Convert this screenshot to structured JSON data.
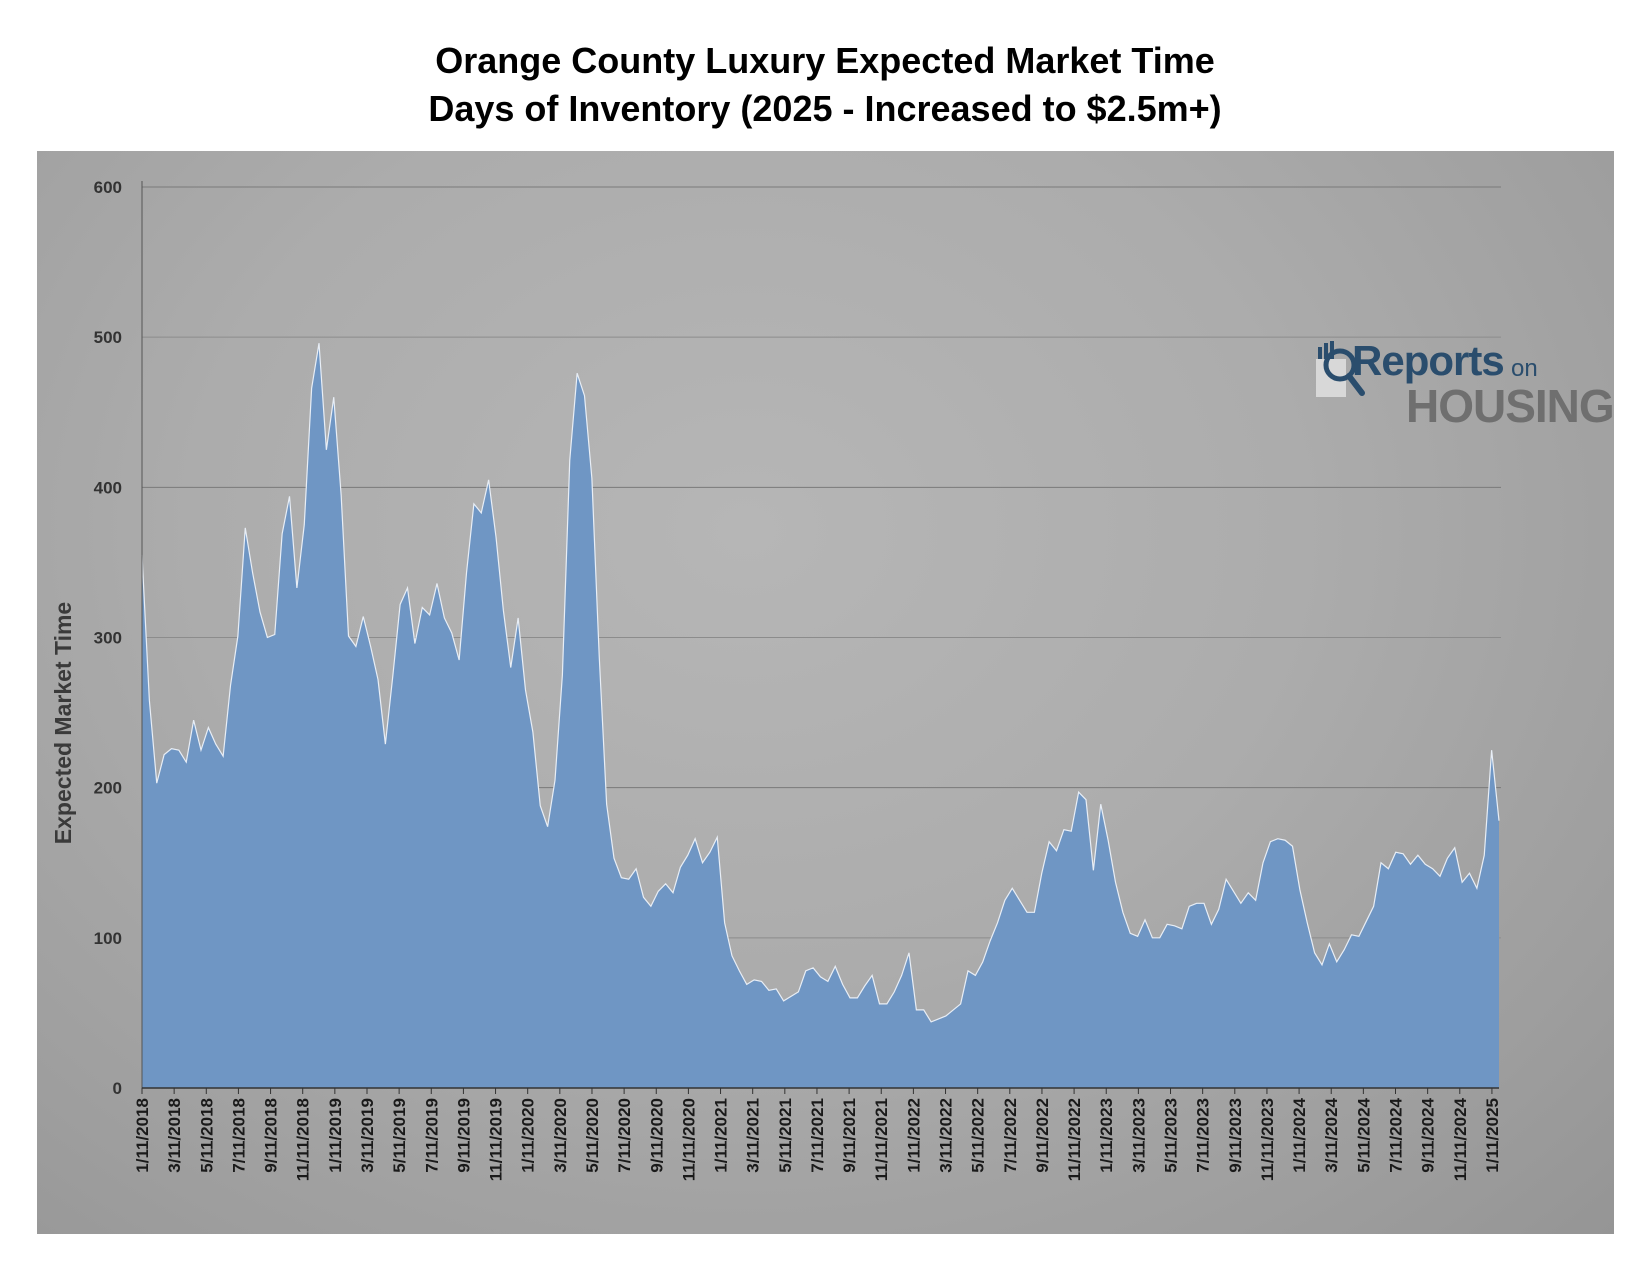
{
  "chart_data": {
    "type": "area",
    "title": "Orange County Luxury Expected Market Time",
    "subtitle": "Days of Inventory  (2025 - Increased to $2.5m+)",
    "xlabel": "",
    "ylabel": "Expected Market Time",
    "ylim": [
      0,
      600
    ],
    "yticks": [
      0,
      100,
      200,
      300,
      400,
      500,
      600
    ],
    "grid": true,
    "legend": "none",
    "colors": {
      "fill": "#6f96c4",
      "stroke": "#e8eef6"
    },
    "xtick_labels": [
      "1/11/2018",
      "3/11/2018",
      "5/11/2018",
      "7/11/2018",
      "9/11/2018",
      "11/11/2018",
      "1/11/2019",
      "3/11/2019",
      "5/11/2019",
      "7/11/2019",
      "9/11/2019",
      "11/11/2019",
      "1/11/2020",
      "3/11/2020",
      "5/11/2020",
      "7/11/2020",
      "9/11/2020",
      "11/11/2020",
      "1/11/2021",
      "3/11/2021",
      "5/11/2021",
      "7/11/2021",
      "9/11/2021",
      "11/11/2021",
      "1/11/2022",
      "3/11/2022",
      "5/11/2022",
      "7/11/2022",
      "9/11/2022",
      "11/11/2022",
      "1/11/2023",
      "3/11/2023",
      "5/11/2023",
      "7/11/2023",
      "9/11/2023",
      "11/11/2023",
      "1/11/2024",
      "3/11/2024",
      "5/11/2024",
      "7/11/2024",
      "9/11/2024",
      "11/11/2024",
      "1/11/2025"
    ],
    "series": [
      {
        "values": [
          355,
          258,
          203,
          222,
          226,
          225,
          217,
          245,
          225,
          240,
          229,
          221,
          268,
          301,
          373,
          343,
          317,
          300,
          302,
          369,
          394,
          333,
          375,
          466,
          496,
          425,
          460,
          395,
          301,
          294,
          314,
          294,
          272,
          229,
          274,
          322,
          333,
          296,
          320,
          315,
          336,
          313,
          303,
          285,
          343,
          389,
          383,
          405,
          367,
          318,
          280,
          313,
          265,
          237,
          188,
          174,
          205,
          275,
          418,
          476,
          461,
          406,
          287,
          189,
          153,
          140,
          139,
          146,
          127,
          121,
          131,
          136,
          130,
          147,
          155,
          166,
          150,
          157,
          167,
          110,
          88,
          78,
          69,
          72,
          71,
          65,
          66,
          58,
          61,
          64,
          78,
          80,
          74,
          71,
          81,
          69,
          60,
          60,
          68,
          75,
          56,
          56,
          64,
          75,
          90,
          52,
          52,
          44,
          46,
          48,
          52,
          56,
          78,
          75,
          84,
          98,
          110,
          125,
          133,
          125,
          117,
          117,
          143,
          164,
          158,
          172,
          171,
          197,
          192,
          145,
          189,
          165,
          137,
          117,
          103,
          101,
          112,
          100,
          100,
          109,
          108,
          106,
          121,
          123,
          123,
          109,
          119,
          139,
          131,
          123,
          130,
          125,
          150,
          164,
          166,
          165,
          161,
          132,
          110,
          90,
          82,
          96,
          84,
          92,
          102,
          101,
          111,
          121,
          150,
          146,
          157,
          156,
          149,
          155,
          149,
          146,
          141,
          153,
          160,
          137,
          143,
          133,
          155,
          225,
          178
        ]
      }
    ]
  },
  "logo": {
    "line1": "Reports",
    "line1_suffix": "on",
    "line2": "HOUSING"
  }
}
